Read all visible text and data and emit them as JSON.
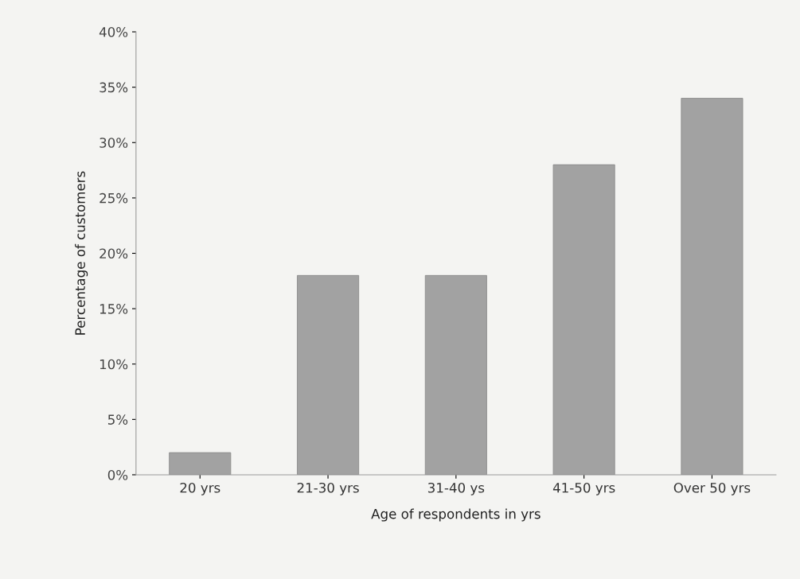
{
  "chart_data": {
    "type": "bar",
    "xlabel": "Age of respondents in yrs",
    "ylabel": "Percentage of customers",
    "categories": [
      "20 yrs",
      "21-30 yrs",
      "31-40 ys",
      "41-50 yrs",
      "Over 50 yrs"
    ],
    "values": [
      2,
      18,
      18,
      28,
      34
    ],
    "color": "#a2a2a2",
    "ylim": [
      0,
      40
    ],
    "yticks": [
      {
        "value": 0,
        "label": "0%"
      },
      {
        "value": 5,
        "label": "5%"
      },
      {
        "value": 10,
        "label": "10%"
      },
      {
        "value": 15,
        "label": "15%"
      },
      {
        "value": 20,
        "label": "20%"
      },
      {
        "value": 25,
        "label": "25%"
      },
      {
        "value": 30,
        "label": "30%"
      },
      {
        "value": 35,
        "label": "35%"
      },
      {
        "value": 40,
        "label": "40%"
      }
    ],
    "grid": false,
    "legend": false
  }
}
